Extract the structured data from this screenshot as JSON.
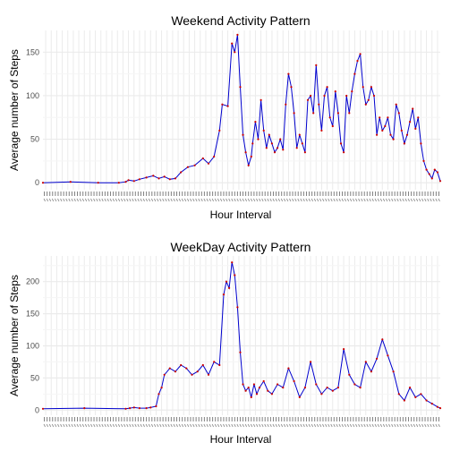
{
  "colors": {
    "line": "#0000cd",
    "points": "#cc0000",
    "grid": "#ebebeb",
    "gridMinor": "#f5f5f5",
    "text": "#000000",
    "tick": "#4d4d4d"
  },
  "chart_data": [
    {
      "type": "line",
      "title": "Weekend Activity Pattern",
      "xlabel": "Hour Interval",
      "ylabel": "Average number of Steps",
      "ylim": [
        -8,
        175
      ],
      "yticks": [
        0,
        50,
        100,
        150
      ],
      "xlim": [
        0,
        288
      ],
      "grid": true,
      "legend": "none",
      "series": [
        {
          "x": [
            0,
            20,
            40,
            55,
            60,
            62,
            66,
            70,
            75,
            80,
            84,
            88,
            92,
            96,
            100,
            105,
            110,
            116,
            120,
            124,
            128,
            130,
            134,
            137,
            139,
            141,
            143,
            145,
            147,
            149,
            151,
            152,
            154,
            156,
            158,
            160,
            162,
            164,
            166,
            168,
            170,
            172,
            174,
            176,
            178,
            180,
            182,
            184,
            186,
            188,
            190,
            192,
            194,
            196,
            198,
            200,
            202,
            204,
            206,
            208,
            210,
            212,
            214,
            216,
            218,
            220,
            222,
            224,
            226,
            228,
            230,
            232,
            234,
            236,
            238,
            240,
            242,
            244,
            246,
            248,
            250,
            252,
            254,
            256,
            258,
            260,
            262,
            264,
            266,
            268,
            270,
            272,
            274,
            276,
            278,
            280,
            282,
            284,
            286,
            288
          ],
          "y": [
            0,
            1,
            0,
            0,
            1,
            3,
            2,
            4,
            6,
            8,
            5,
            7,
            4,
            5,
            12,
            18,
            20,
            28,
            22,
            30,
            60,
            90,
            88,
            160,
            150,
            170,
            110,
            55,
            35,
            20,
            30,
            45,
            70,
            50,
            95,
            60,
            40,
            55,
            45,
            35,
            40,
            50,
            38,
            90,
            125,
            110,
            80,
            40,
            55,
            45,
            35,
            95,
            100,
            80,
            135,
            90,
            60,
            100,
            110,
            75,
            65,
            105,
            80,
            45,
            35,
            100,
            80,
            105,
            125,
            140,
            148,
            110,
            90,
            95,
            110,
            100,
            55,
            75,
            60,
            65,
            75,
            55,
            50,
            90,
            80,
            60,
            45,
            55,
            70,
            85,
            62,
            75,
            45,
            25,
            15,
            10,
            5,
            15,
            12,
            2
          ]
        }
      ]
    },
    {
      "type": "line",
      "title": "WeekDay Activity Pattern",
      "xlabel": "Hour Interval",
      "ylabel": "Average number of Steps",
      "ylim": [
        -8,
        240
      ],
      "yticks": [
        0,
        50,
        100,
        150,
        200
      ],
      "xlim": [
        0,
        288
      ],
      "grid": true,
      "legend": "none",
      "series": [
        {
          "x": [
            0,
            30,
            60,
            63,
            66,
            70,
            75,
            78,
            82,
            84,
            86,
            88,
            92,
            96,
            100,
            104,
            108,
            112,
            116,
            120,
            124,
            128,
            131,
            133,
            135,
            137,
            139,
            141,
            143,
            145,
            147,
            149,
            151,
            153,
            155,
            157,
            160,
            163,
            166,
            170,
            174,
            178,
            182,
            186,
            190,
            194,
            198,
            202,
            206,
            210,
            214,
            218,
            222,
            226,
            230,
            234,
            238,
            242,
            246,
            250,
            254,
            258,
            262,
            266,
            270,
            274,
            278,
            282,
            286,
            288
          ],
          "y": [
            2,
            3,
            2,
            3,
            4,
            3,
            3,
            4,
            6,
            25,
            35,
            55,
            65,
            60,
            70,
            65,
            55,
            60,
            70,
            55,
            75,
            70,
            180,
            200,
            190,
            230,
            210,
            160,
            90,
            40,
            30,
            35,
            20,
            40,
            25,
            35,
            45,
            30,
            25,
            40,
            35,
            65,
            45,
            20,
            35,
            75,
            40,
            25,
            35,
            30,
            35,
            95,
            55,
            40,
            35,
            75,
            60,
            80,
            110,
            85,
            60,
            25,
            15,
            35,
            20,
            25,
            15,
            10,
            5,
            3
          ]
        }
      ]
    }
  ]
}
